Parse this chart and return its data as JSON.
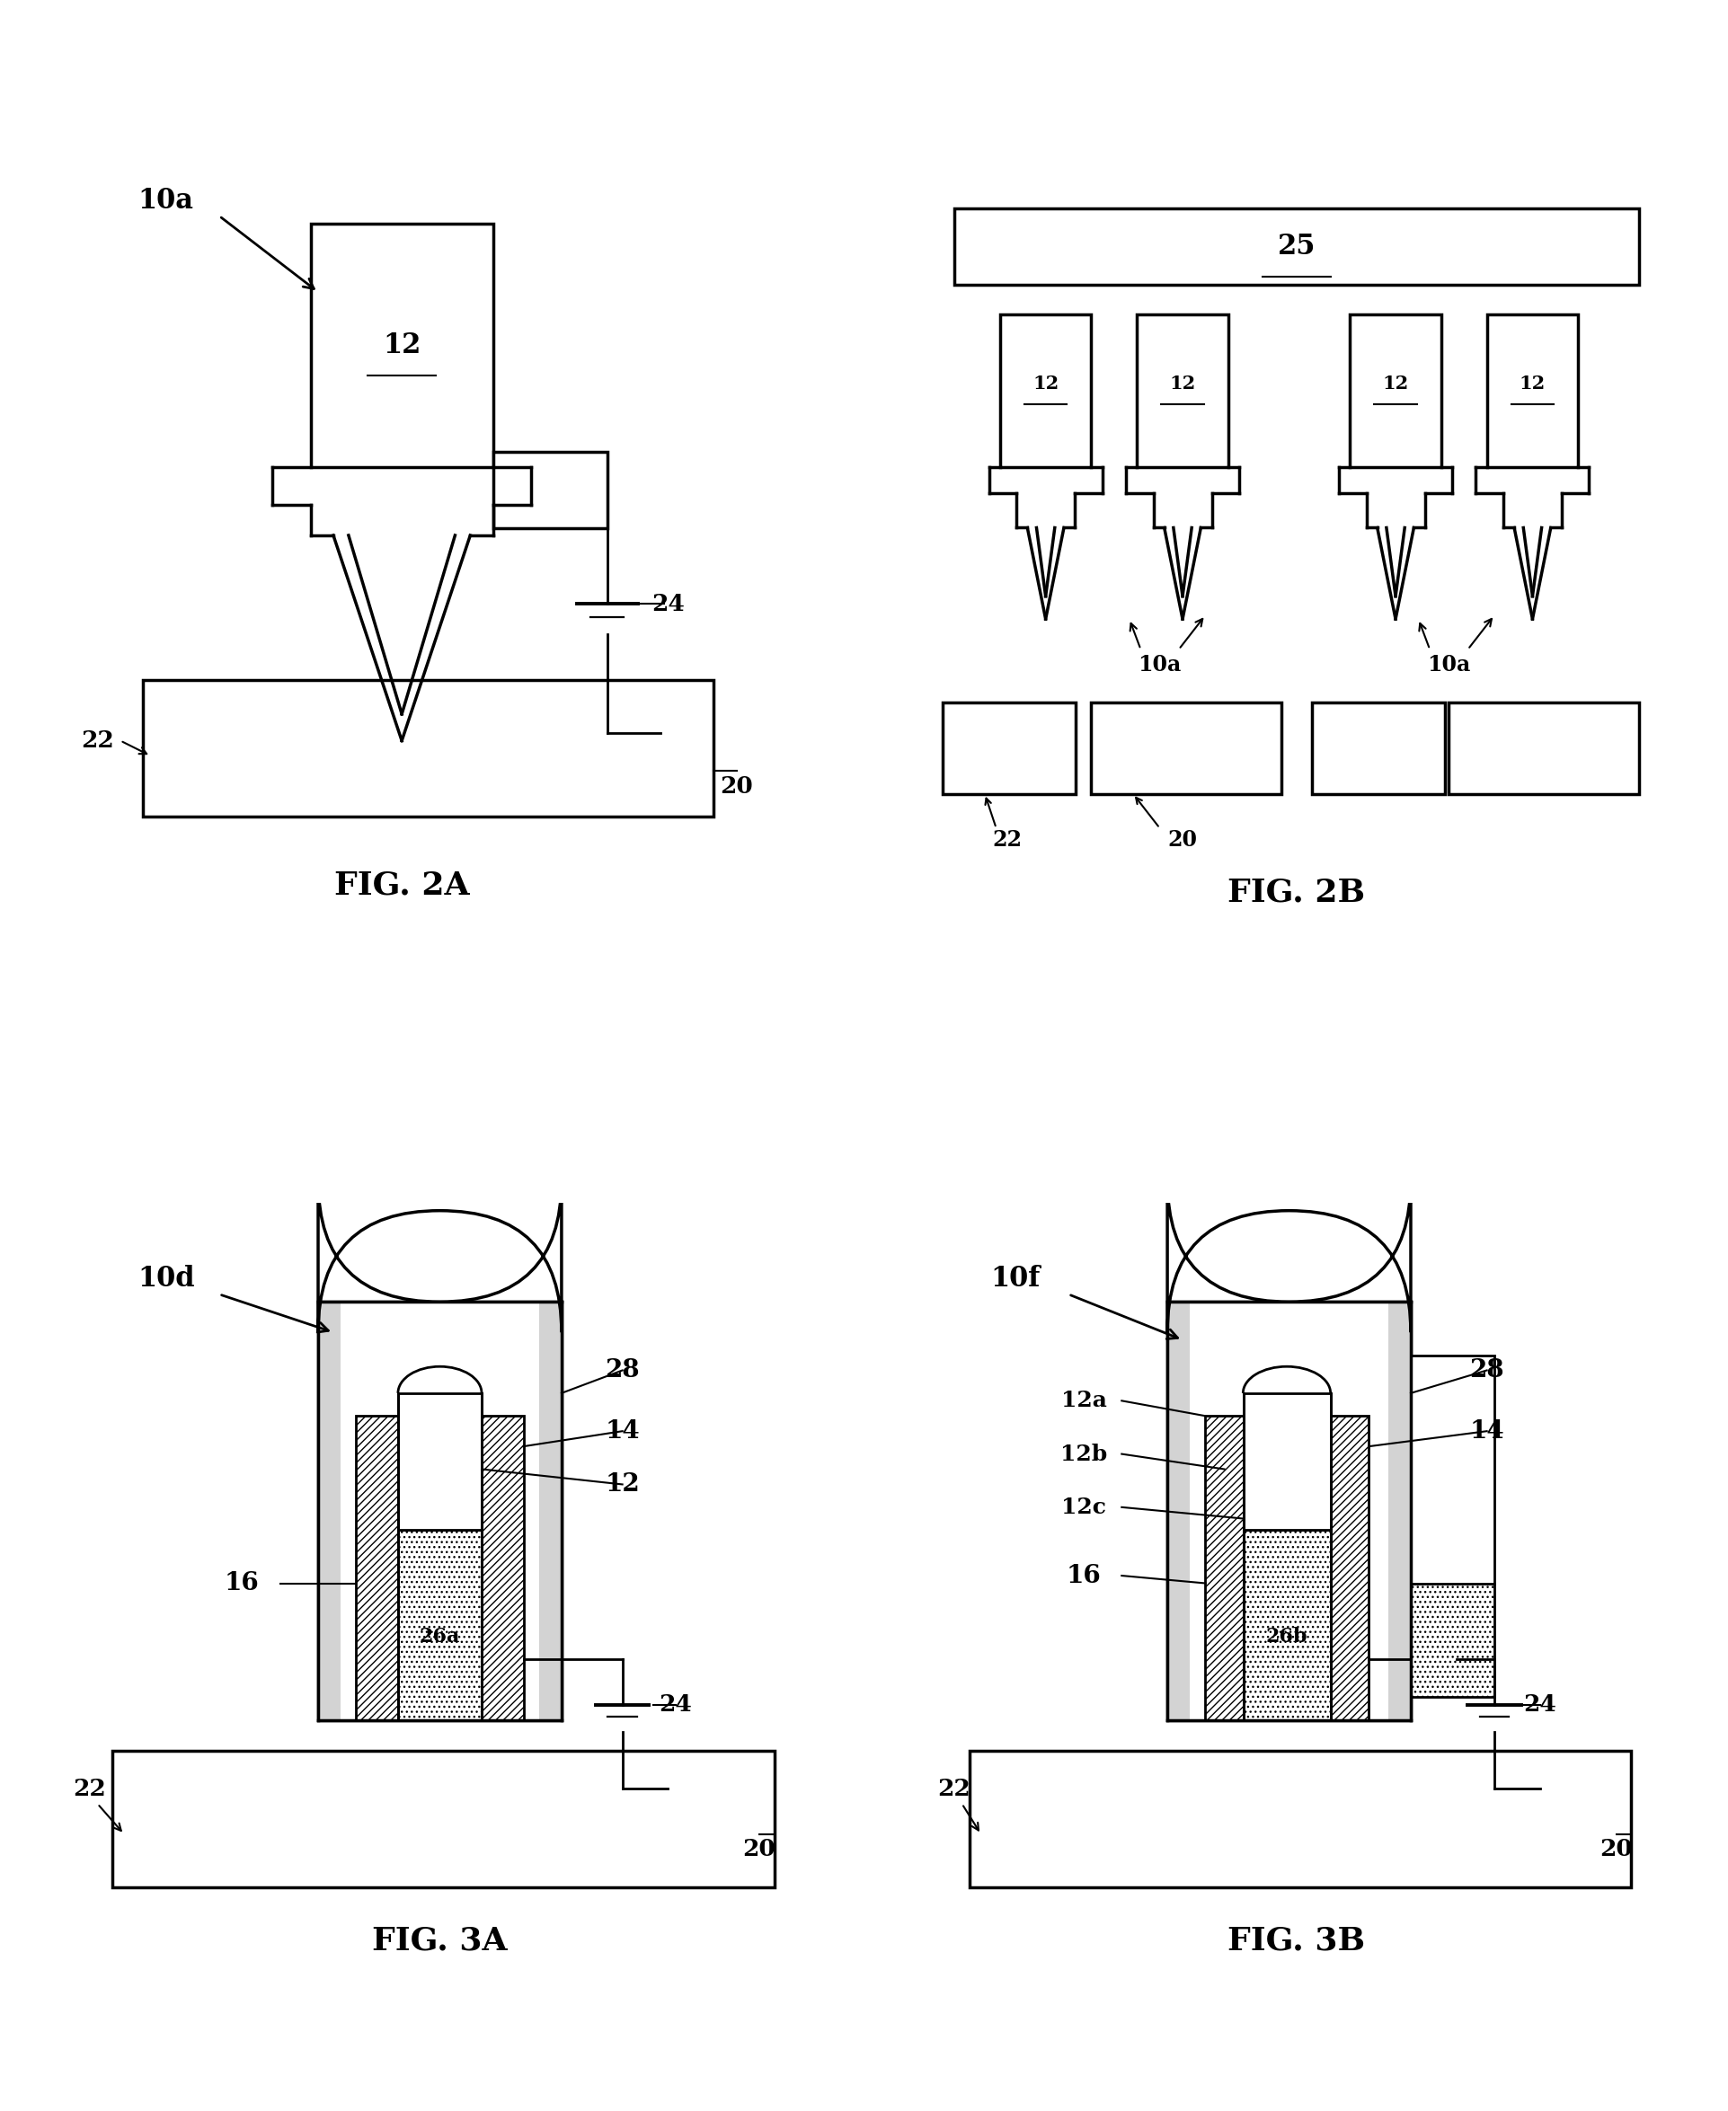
{
  "bg": "#ffffff",
  "lw": 2.5,
  "lw2": 2.0,
  "lw_thin": 1.5,
  "fig_labels": [
    "FIG. 2A",
    "FIG. 2B",
    "FIG. 3A",
    "FIG. 3B"
  ]
}
